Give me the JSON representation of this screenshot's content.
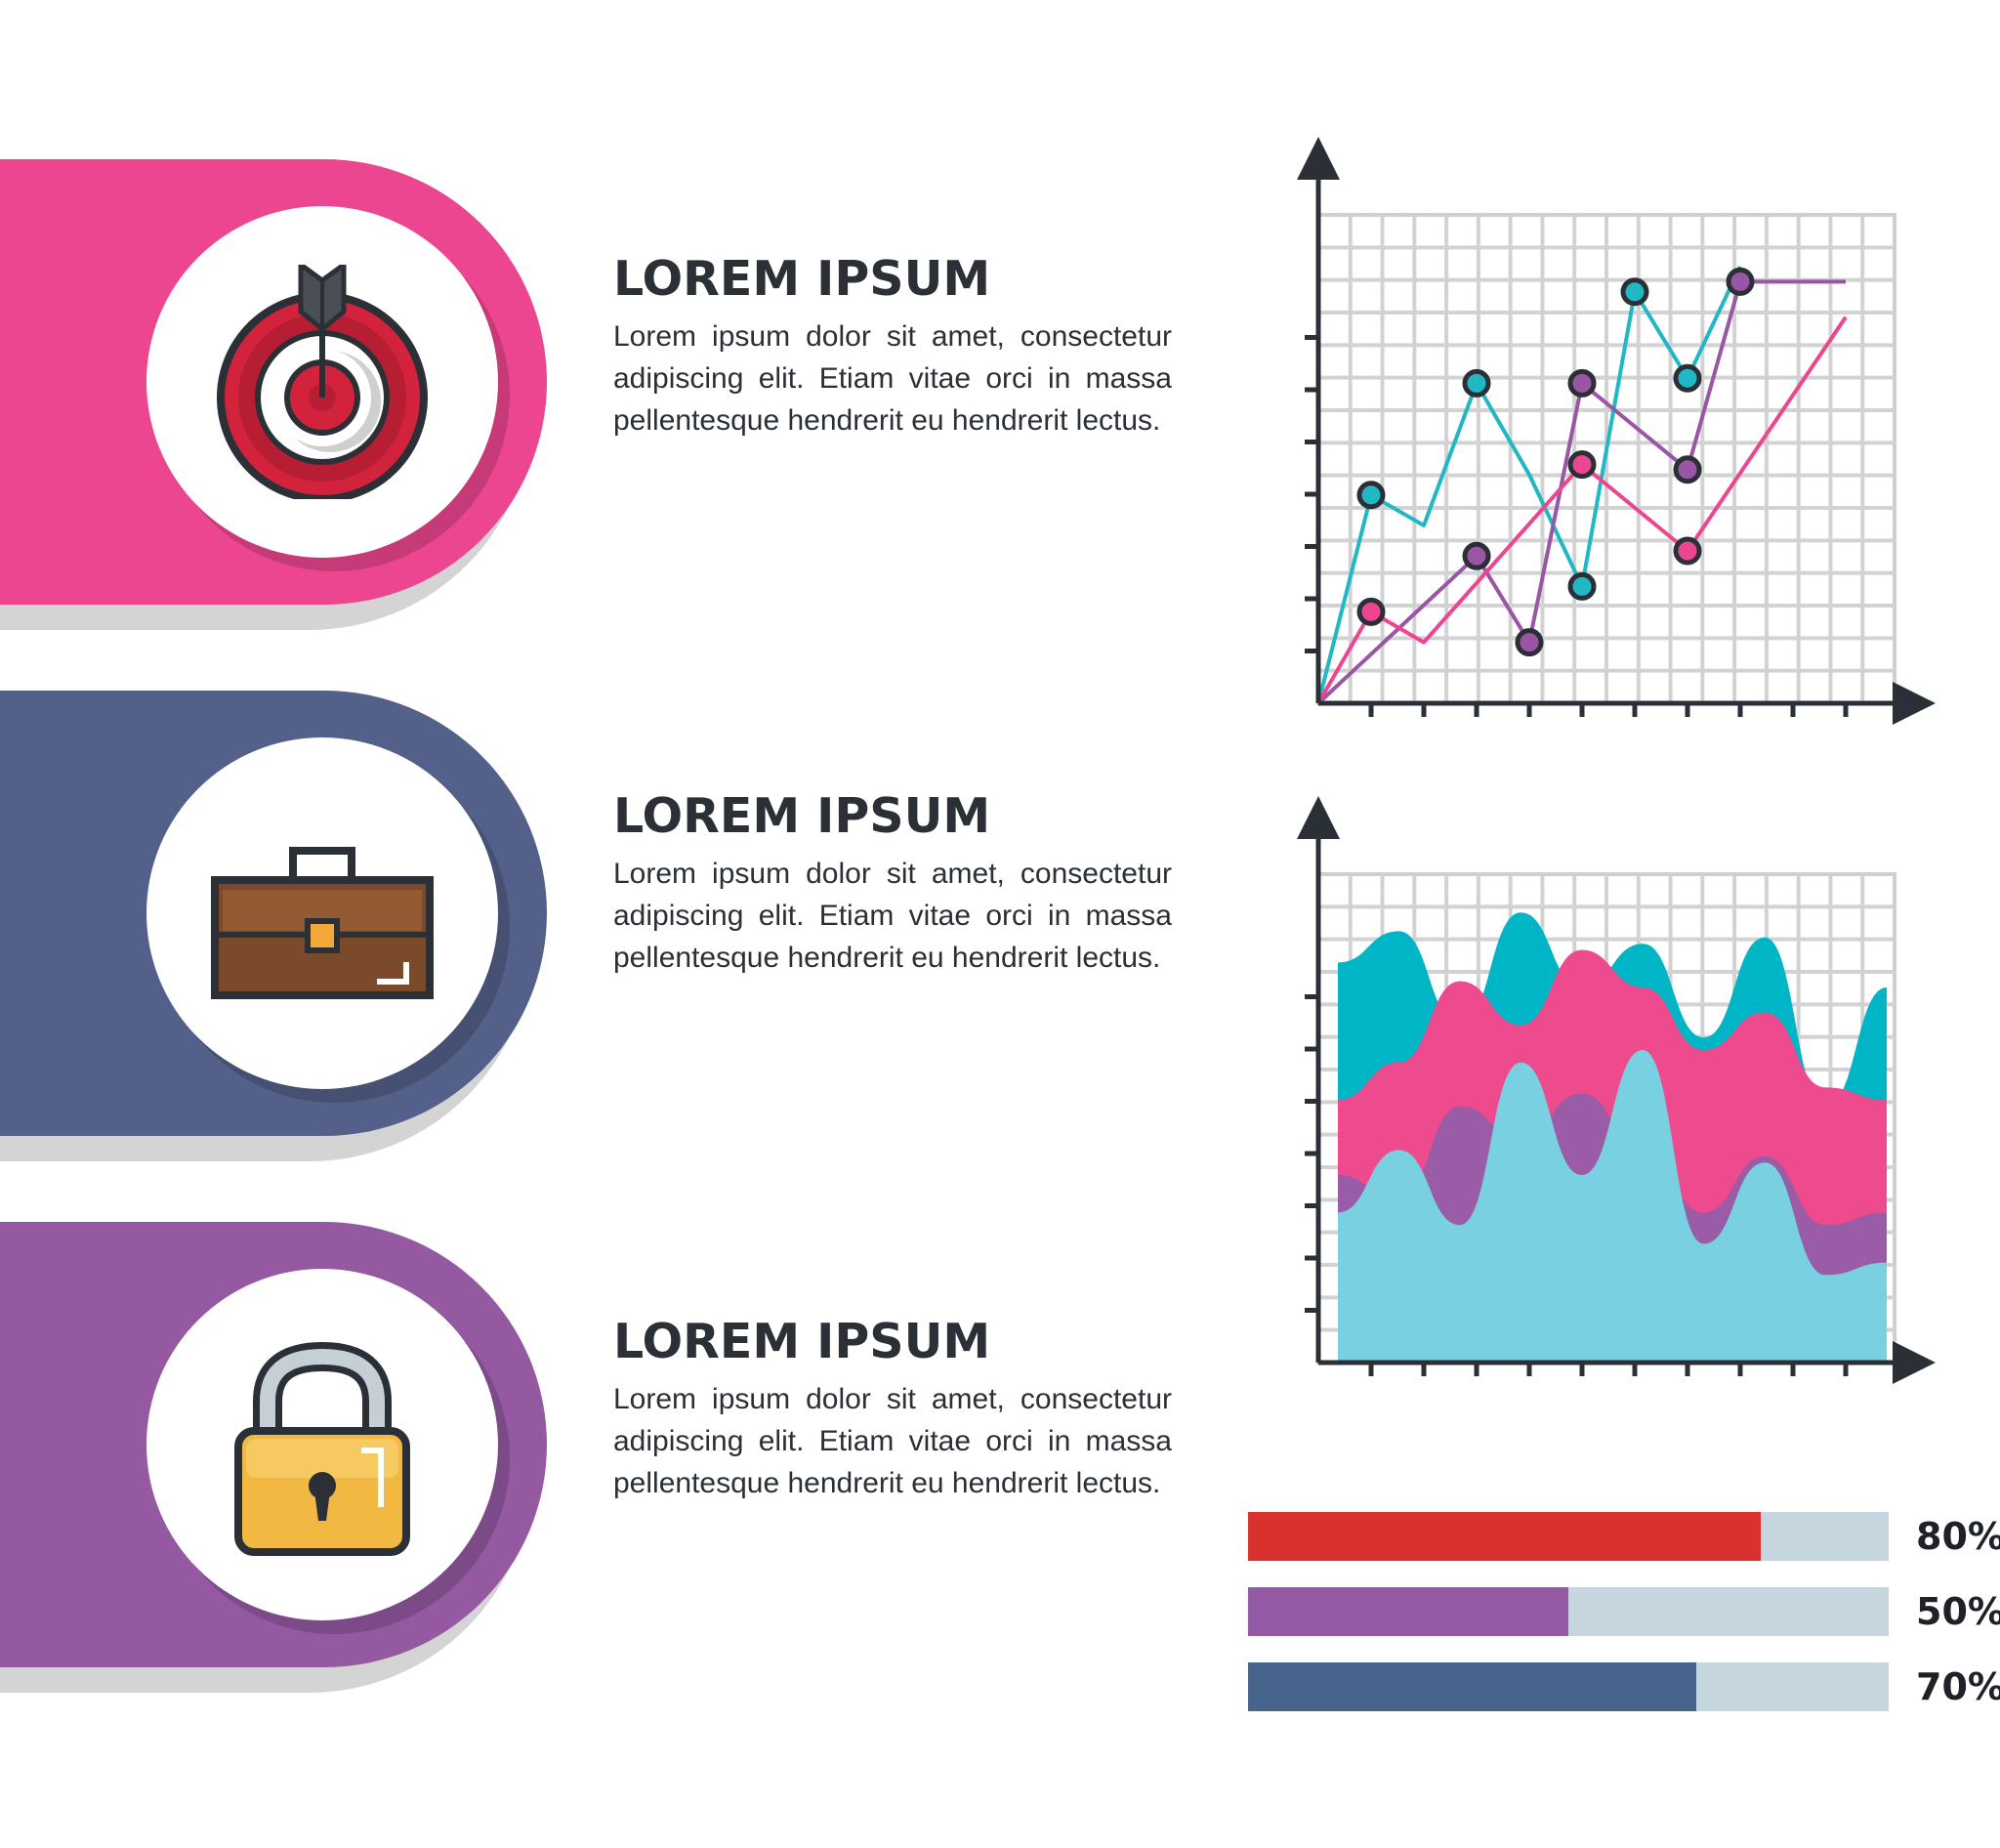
{
  "sections": [
    {
      "title": "LOREM IPSUM",
      "body": "Lorem ipsum dolor sit amet, consectetur adipiscing elit. Etiam vitae orci in massa pellentesque hendrerit eu hendrerit lectus.",
      "color": "#ec4690",
      "icon": "target-icon"
    },
    {
      "title": "LOREM IPSUM",
      "body": "Lorem ipsum dolor sit amet, consectetur adipiscing elit. Etiam vitae orci in massa pellentesque hendrerit eu hendrerit lectus.",
      "color": "#53608a",
      "icon": "briefcase-icon"
    },
    {
      "title": "LOREM IPSUM",
      "body": "Lorem ipsum dolor sit amet, consectetur adipiscing elit. Etiam vitae orci in massa pellentesque hendrerit eu hendrerit lectus.",
      "color": "#9559a2",
      "icon": "padlock-icon"
    }
  ],
  "chart_data": [
    {
      "type": "line",
      "grid": true,
      "legend": "none",
      "series": [
        {
          "color": "#1fb8c4",
          "points": [
            [
              0,
              0
            ],
            [
              1,
              4.1
            ],
            [
              2,
              3.5
            ],
            [
              3,
              6.3
            ],
            [
              4,
              4.5
            ],
            [
              5,
              2.3
            ],
            [
              6,
              8.1
            ],
            [
              7,
              6.4
            ],
            [
              8,
              8.6
            ]
          ]
        },
        {
          "color": "#9a55a5",
          "points": [
            [
              0,
              0
            ],
            [
              3,
              2.9
            ],
            [
              4,
              1.2
            ],
            [
              5,
              6.3
            ],
            [
              7,
              4.6
            ],
            [
              8,
              8.3
            ],
            [
              10,
              8.3
            ]
          ]
        },
        {
          "color": "#ec4690",
          "points": [
            [
              0,
              0
            ],
            [
              1,
              1.8
            ],
            [
              2,
              1.2
            ],
            [
              5,
              4.7
            ],
            [
              7,
              3.0
            ],
            [
              10,
              7.6
            ]
          ]
        }
      ],
      "marker_points": [
        {
          "series": 0,
          "index": 1
        },
        {
          "series": 0,
          "index": 3
        },
        {
          "series": 0,
          "index": 5
        },
        {
          "series": 0,
          "index": 6
        },
        {
          "series": 0,
          "index": 7
        },
        {
          "series": 1,
          "index": 1
        },
        {
          "series": 1,
          "index": 2
        },
        {
          "series": 1,
          "index": 3
        },
        {
          "series": 1,
          "index": 4
        },
        {
          "series": 1,
          "index": 5
        },
        {
          "series": 2,
          "index": 1
        },
        {
          "series": 2,
          "index": 3
        },
        {
          "series": 2,
          "index": 4
        }
      ]
    },
    {
      "type": "area",
      "grid": true,
      "legend": "none",
      "series": [
        {
          "color": "#00b5c5",
          "values": [
            6.4,
            6.9,
            5.4,
            7.2,
            6.0,
            6.7,
            5.2,
            6.8,
            4.1,
            6.0
          ]
        },
        {
          "color": "#ee4a8e",
          "values": [
            4.2,
            4.8,
            6.1,
            5.4,
            6.6,
            6.0,
            5.0,
            5.6,
            4.4,
            4.2
          ]
        },
        {
          "color": "#9a5ba7",
          "values": [
            3.0,
            2.6,
            4.1,
            3.6,
            4.3,
            3.4,
            2.4,
            3.3,
            2.2,
            2.4
          ]
        },
        {
          "color": "#79d0e0",
          "values": [
            2.4,
            3.4,
            2.2,
            4.8,
            3.0,
            5.0,
            1.9,
            3.2,
            1.4,
            1.6
          ]
        }
      ]
    },
    {
      "type": "bar",
      "orientation": "horizontal",
      "values": [
        80,
        50,
        70
      ],
      "labels": [
        "80%",
        "50%",
        "70%"
      ],
      "colors": [
        "#d8312e",
        "#955aa6",
        "#46648c"
      ],
      "track_color": "#c5d6df"
    }
  ]
}
